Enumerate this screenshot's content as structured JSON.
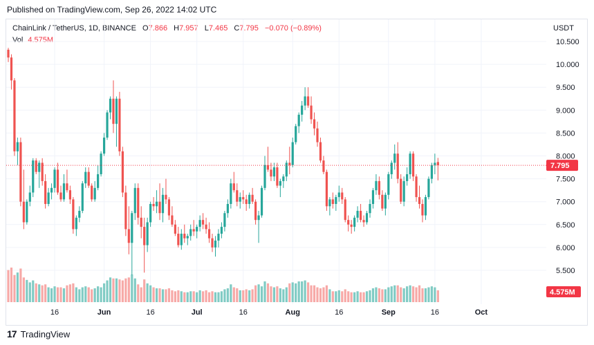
{
  "header": {
    "published": "Published on TradingView.com, Sep 26, 2022 14:02 UTC"
  },
  "legend": {
    "symbol": "ChainLink / TetherUS, 1D, BINANCE",
    "o_label": "O",
    "o_value": "7.866",
    "h_label": "H",
    "h_value": "7.957",
    "l_label": "L",
    "l_value": "7.465",
    "c_label": "C",
    "c_value": "7.795",
    "change": "−0.070 (−0.89%)",
    "vol_label": "Vol",
    "vol_value": "4.575M"
  },
  "currency": "USDT",
  "footer": {
    "logo_text": "17",
    "brand": "TradingView"
  },
  "colors": {
    "up": "#26a69a",
    "down": "#ef5350",
    "up_vol": "#80cbc4",
    "down_vol": "#f7a9a7",
    "badge": "#f23645",
    "dotted": "#f23645"
  },
  "chart_data": {
    "type": "candlestick",
    "ylim": [
      5.0,
      10.75
    ],
    "y_ticks": [
      "10.500",
      "10.000",
      "9.500",
      "9.000",
      "8.500",
      "8.000",
      "7.500",
      "7.000",
      "6.500",
      "6.000",
      "5.500"
    ],
    "x_ticks": [
      {
        "label": "16",
        "day": 15,
        "bold": false
      },
      {
        "label": "Jun",
        "day": 31,
        "bold": true
      },
      {
        "label": "16",
        "day": 46,
        "bold": false
      },
      {
        "label": "Jul",
        "day": 61,
        "bold": true
      },
      {
        "label": "16",
        "day": 76,
        "bold": false
      },
      {
        "label": "Aug",
        "day": 92,
        "bold": true
      },
      {
        "label": "16",
        "day": 107,
        "bold": false
      },
      {
        "label": "Sep",
        "day": 123,
        "bold": true
      },
      {
        "label": "16",
        "day": 138,
        "bold": false
      },
      {
        "label": "Oct",
        "day": 153,
        "bold": true
      }
    ],
    "last_price": "7.795",
    "last_volume": "4.575M",
    "candles": [
      [
        10.32,
        10.36,
        10.05,
        10.15,
        65
      ],
      [
        10.15,
        10.22,
        9.45,
        9.65,
        70
      ],
      [
        9.65,
        9.7,
        8.0,
        8.1,
        55
      ],
      [
        8.1,
        8.4,
        7.8,
        8.3,
        60
      ],
      [
        8.3,
        8.4,
        6.9,
        7.0,
        68
      ],
      [
        7.0,
        7.7,
        6.4,
        6.55,
        50
      ],
      [
        6.55,
        7.05,
        6.5,
        7.0,
        45
      ],
      [
        7.0,
        7.35,
        6.9,
        7.2,
        40
      ],
      [
        7.2,
        7.95,
        7.1,
        7.9,
        44
      ],
      [
        7.9,
        7.95,
        7.6,
        7.65,
        38
      ],
      [
        7.65,
        7.9,
        7.3,
        7.85,
        36
      ],
      [
        7.85,
        7.95,
        7.35,
        7.45,
        34
      ],
      [
        7.45,
        7.6,
        6.85,
        6.95,
        36
      ],
      [
        6.95,
        7.3,
        6.9,
        7.2,
        30
      ],
      [
        7.2,
        7.4,
        7.05,
        7.3,
        28
      ],
      [
        7.3,
        7.75,
        7.2,
        7.7,
        32
      ],
      [
        7.7,
        7.85,
        7.15,
        7.2,
        30
      ],
      [
        7.2,
        7.35,
        7.0,
        7.05,
        30
      ],
      [
        7.05,
        7.6,
        7.0,
        7.4,
        28
      ],
      [
        7.4,
        7.7,
        7.2,
        7.25,
        34
      ],
      [
        7.25,
        7.35,
        6.95,
        7.05,
        36
      ],
      [
        7.05,
        7.1,
        6.3,
        6.4,
        38
      ],
      [
        6.4,
        6.7,
        6.25,
        6.65,
        30
      ],
      [
        6.65,
        6.9,
        6.55,
        6.8,
        26
      ],
      [
        6.8,
        7.45,
        6.75,
        7.4,
        30
      ],
      [
        7.4,
        7.75,
        7.3,
        7.65,
        32
      ],
      [
        7.65,
        7.75,
        7.3,
        7.35,
        30
      ],
      [
        7.35,
        7.4,
        7.0,
        7.05,
        26
      ],
      [
        7.05,
        7.45,
        7.0,
        7.3,
        28
      ],
      [
        7.3,
        7.8,
        7.25,
        7.6,
        32
      ],
      [
        7.6,
        8.1,
        7.55,
        8.05,
        30
      ],
      [
        8.05,
        8.5,
        8.0,
        8.4,
        38
      ],
      [
        8.4,
        9.0,
        8.35,
        8.95,
        44
      ],
      [
        8.95,
        9.3,
        8.8,
        9.25,
        50
      ],
      [
        9.25,
        9.65,
        8.5,
        8.7,
        48
      ],
      [
        8.7,
        9.3,
        8.2,
        9.25,
        48
      ],
      [
        9.25,
        9.4,
        8.0,
        8.1,
        46
      ],
      [
        8.1,
        8.2,
        7.1,
        7.2,
        44
      ],
      [
        7.2,
        7.35,
        6.25,
        6.4,
        48
      ],
      [
        6.4,
        6.9,
        5.85,
        6.1,
        50
      ],
      [
        6.1,
        6.8,
        5.4,
        6.75,
        56
      ],
      [
        6.75,
        7.4,
        6.6,
        7.3,
        48
      ],
      [
        7.3,
        7.4,
        6.5,
        6.65,
        36
      ],
      [
        6.65,
        6.9,
        6.2,
        6.45,
        30
      ],
      [
        6.45,
        6.65,
        5.45,
        6.05,
        46
      ],
      [
        6.05,
        6.65,
        5.9,
        6.55,
        38
      ],
      [
        6.55,
        7.0,
        6.45,
        6.95,
        34
      ],
      [
        6.95,
        7.1,
        6.8,
        6.9,
        30
      ],
      [
        6.9,
        7.25,
        6.75,
        7.0,
        28
      ],
      [
        7.0,
        7.4,
        6.6,
        6.75,
        28
      ],
      [
        6.75,
        7.3,
        6.55,
        7.15,
        26
      ],
      [
        7.15,
        7.5,
        6.95,
        7.05,
        26
      ],
      [
        7.05,
        7.1,
        6.6,
        6.7,
        28
      ],
      [
        6.7,
        6.9,
        6.45,
        6.5,
        24
      ],
      [
        6.5,
        6.6,
        6.25,
        6.3,
        22
      ],
      [
        6.3,
        6.45,
        6.0,
        6.05,
        24
      ],
      [
        6.05,
        6.4,
        5.95,
        6.3,
        22
      ],
      [
        6.3,
        6.5,
        6.1,
        6.2,
        20
      ],
      [
        6.2,
        6.3,
        6.05,
        6.25,
        20
      ],
      [
        6.25,
        6.5,
        6.15,
        6.4,
        22
      ],
      [
        6.4,
        6.6,
        6.25,
        6.35,
        22
      ],
      [
        6.35,
        6.5,
        6.2,
        6.45,
        20
      ],
      [
        6.45,
        6.7,
        6.35,
        6.6,
        24
      ],
      [
        6.6,
        6.75,
        6.4,
        6.5,
        22
      ],
      [
        6.5,
        6.65,
        6.3,
        6.4,
        24
      ],
      [
        6.4,
        6.55,
        6.1,
        6.2,
        20
      ],
      [
        6.2,
        6.3,
        5.9,
        6.0,
        22
      ],
      [
        6.0,
        6.25,
        5.8,
        6.15,
        20
      ],
      [
        6.15,
        6.4,
        6.0,
        6.3,
        20
      ],
      [
        6.3,
        6.55,
        6.2,
        6.45,
        22
      ],
      [
        6.45,
        6.8,
        6.35,
        6.75,
        26
      ],
      [
        6.75,
        7.05,
        6.65,
        6.95,
        28
      ],
      [
        6.95,
        7.5,
        6.85,
        7.4,
        36
      ],
      [
        7.4,
        7.65,
        7.2,
        7.25,
        30
      ],
      [
        7.25,
        7.4,
        6.9,
        7.0,
        28
      ],
      [
        7.0,
        7.2,
        6.85,
        7.1,
        24
      ],
      [
        7.1,
        7.25,
        6.95,
        7.05,
        24
      ],
      [
        7.05,
        7.15,
        6.8,
        6.95,
        26
      ],
      [
        6.95,
        7.2,
        6.85,
        7.15,
        24
      ],
      [
        7.15,
        7.3,
        6.95,
        7.0,
        26
      ],
      [
        7.0,
        7.05,
        6.5,
        6.6,
        34
      ],
      [
        6.6,
        6.8,
        6.1,
        6.7,
        36
      ],
      [
        6.7,
        7.35,
        6.65,
        7.3,
        32
      ],
      [
        7.3,
        8.0,
        7.25,
        7.8,
        42
      ],
      [
        7.8,
        8.2,
        7.65,
        7.7,
        38
      ],
      [
        7.7,
        7.85,
        7.45,
        7.55,
        32
      ],
      [
        7.55,
        7.85,
        7.45,
        7.75,
        30
      ],
      [
        7.75,
        7.85,
        7.3,
        7.35,
        32
      ],
      [
        7.35,
        7.5,
        7.1,
        7.45,
        28
      ],
      [
        7.45,
        7.6,
        7.3,
        7.55,
        26
      ],
      [
        7.55,
        7.9,
        7.45,
        7.85,
        30
      ],
      [
        7.85,
        8.2,
        7.6,
        7.8,
        38
      ],
      [
        7.8,
        8.4,
        7.75,
        8.3,
        40
      ],
      [
        8.3,
        8.7,
        8.25,
        8.65,
        38
      ],
      [
        8.65,
        8.95,
        8.5,
        8.9,
        42
      ],
      [
        8.9,
        9.2,
        8.75,
        9.1,
        42
      ],
      [
        9.1,
        9.5,
        9.0,
        9.3,
        44
      ],
      [
        9.3,
        9.5,
        9.05,
        9.1,
        40
      ],
      [
        9.1,
        9.3,
        8.7,
        8.8,
        34
      ],
      [
        8.8,
        8.95,
        8.45,
        8.6,
        34
      ],
      [
        8.6,
        8.75,
        8.2,
        8.3,
        30
      ],
      [
        8.3,
        8.4,
        7.85,
        7.9,
        28
      ],
      [
        7.9,
        8.0,
        7.6,
        7.65,
        30
      ],
      [
        7.65,
        7.7,
        6.8,
        6.9,
        34
      ],
      [
        6.9,
        7.1,
        6.7,
        7.05,
        26
      ],
      [
        7.05,
        7.2,
        6.85,
        6.95,
        22
      ],
      [
        6.95,
        7.15,
        6.8,
        7.1,
        22
      ],
      [
        7.1,
        7.35,
        7.0,
        7.2,
        24
      ],
      [
        7.2,
        7.3,
        6.95,
        7.05,
        22
      ],
      [
        7.05,
        7.1,
        6.55,
        6.6,
        26
      ],
      [
        6.6,
        6.7,
        6.35,
        6.5,
        22
      ],
      [
        6.5,
        6.6,
        6.3,
        6.45,
        20
      ],
      [
        6.45,
        6.7,
        6.35,
        6.65,
        20
      ],
      [
        6.65,
        6.9,
        6.55,
        6.8,
        22
      ],
      [
        6.8,
        6.95,
        6.55,
        6.6,
        20
      ],
      [
        6.6,
        6.7,
        6.45,
        6.55,
        20
      ],
      [
        6.55,
        6.8,
        6.5,
        6.75,
        22
      ],
      [
        6.75,
        7.05,
        6.65,
        6.95,
        24
      ],
      [
        6.95,
        7.3,
        6.85,
        7.25,
        28
      ],
      [
        7.25,
        7.6,
        7.15,
        7.45,
        30
      ],
      [
        7.45,
        7.55,
        7.05,
        7.15,
        28
      ],
      [
        7.15,
        7.25,
        6.8,
        6.85,
        26
      ],
      [
        6.85,
        7.2,
        6.7,
        7.15,
        26
      ],
      [
        7.15,
        7.65,
        7.05,
        7.6,
        30
      ],
      [
        7.6,
        7.9,
        7.5,
        7.85,
        32
      ],
      [
        7.85,
        8.25,
        7.7,
        8.05,
        34
      ],
      [
        8.05,
        8.3,
        7.4,
        7.5,
        34
      ],
      [
        7.5,
        7.6,
        6.95,
        7.0,
        30
      ],
      [
        7.0,
        7.55,
        6.9,
        7.45,
        28
      ],
      [
        7.45,
        7.75,
        7.35,
        7.6,
        32
      ],
      [
        7.6,
        8.1,
        7.5,
        8.05,
        34
      ],
      [
        8.05,
        8.1,
        7.45,
        7.55,
        32
      ],
      [
        7.55,
        7.6,
        7.0,
        7.1,
        30
      ],
      [
        7.1,
        7.35,
        6.85,
        6.95,
        34
      ],
      [
        6.95,
        7.05,
        6.55,
        6.7,
        28
      ],
      [
        6.7,
        7.15,
        6.6,
        7.1,
        28
      ],
      [
        7.1,
        7.55,
        7.05,
        7.5,
        30
      ],
      [
        7.5,
        7.85,
        7.4,
        7.8,
        32
      ],
      [
        7.8,
        8.05,
        7.6,
        7.85,
        30
      ],
      [
        7.866,
        7.957,
        7.465,
        7.795,
        24
      ]
    ]
  }
}
